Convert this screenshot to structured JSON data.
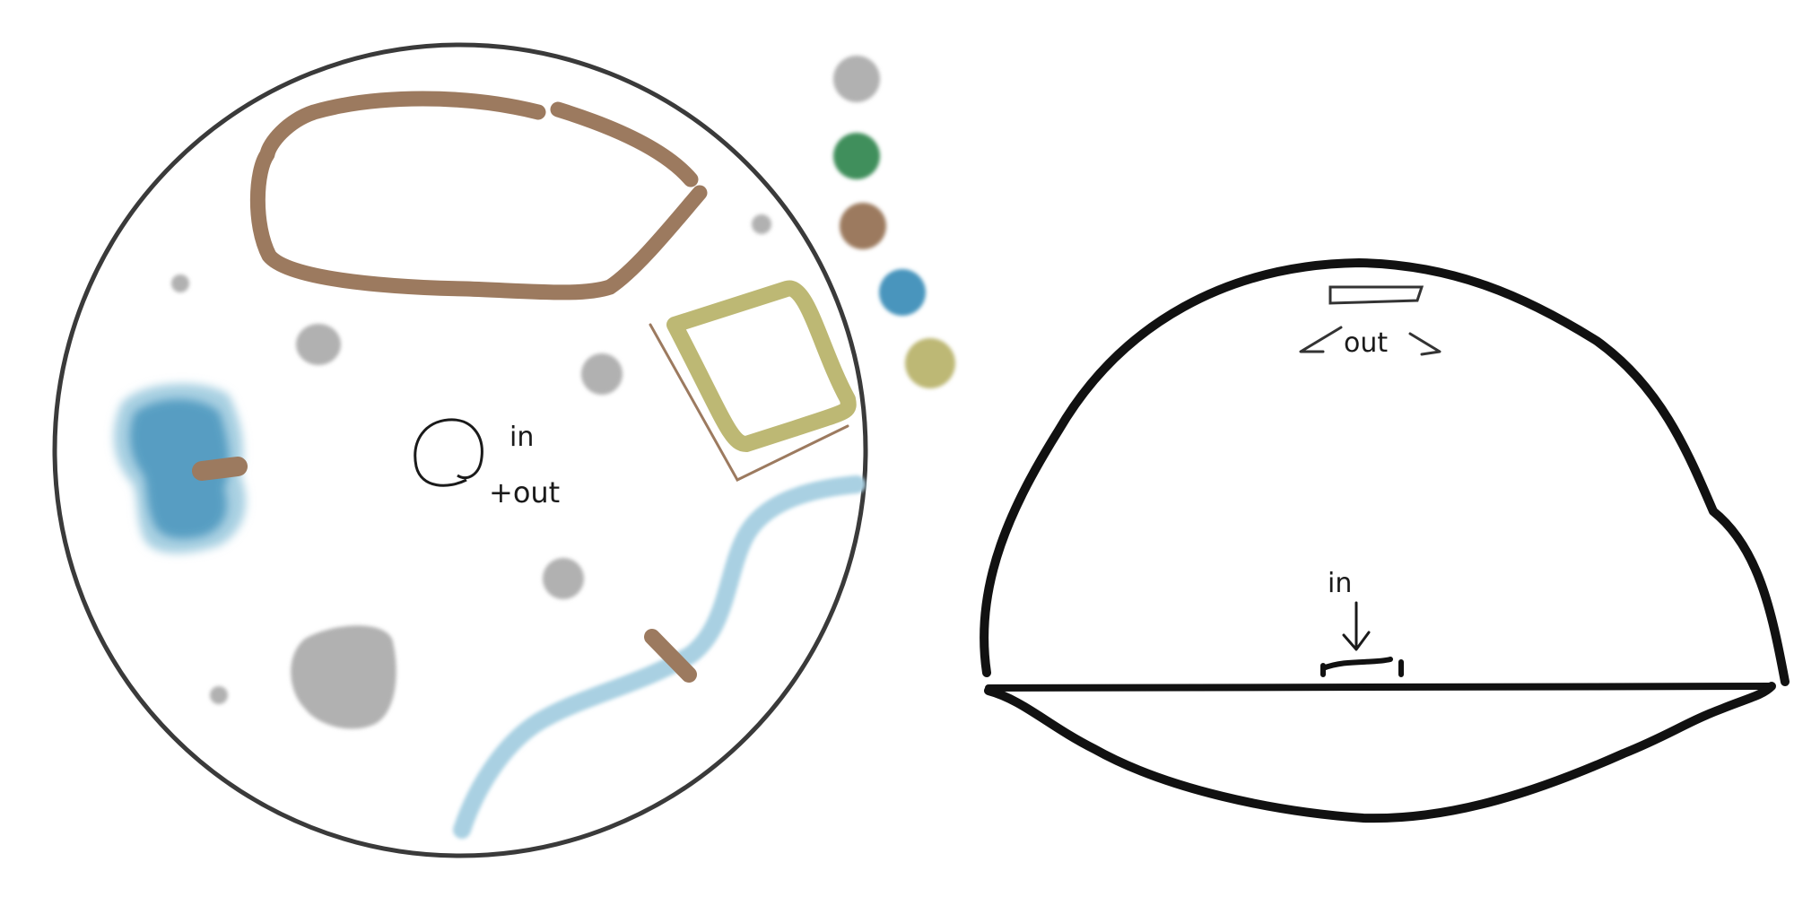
{
  "plan_view": {
    "center_label": {
      "line1": "in",
      "line2": "+out"
    }
  },
  "section_view": {
    "top_label": "out",
    "bottom_label": "in"
  },
  "palette": {
    "swatches": [
      {
        "name": "grey-swatch",
        "color": "#b1b1b1"
      },
      {
        "name": "green-swatch",
        "color": "#3f8f5c"
      },
      {
        "name": "brown-swatch",
        "color": "#9c7a5f"
      },
      {
        "name": "blue-swatch",
        "color": "#4a95bd"
      },
      {
        "name": "olive-swatch",
        "color": "#bdb874"
      }
    ]
  },
  "colors": {
    "outline": "#3a3a3a",
    "path_brown": "#9c7a5f",
    "rock_grey": "#b1b1b1",
    "water_blue": "#a9d0e2",
    "water_blue_deep": "#4a95bd",
    "olive_frame": "#bdb874",
    "ink": "#111111"
  }
}
